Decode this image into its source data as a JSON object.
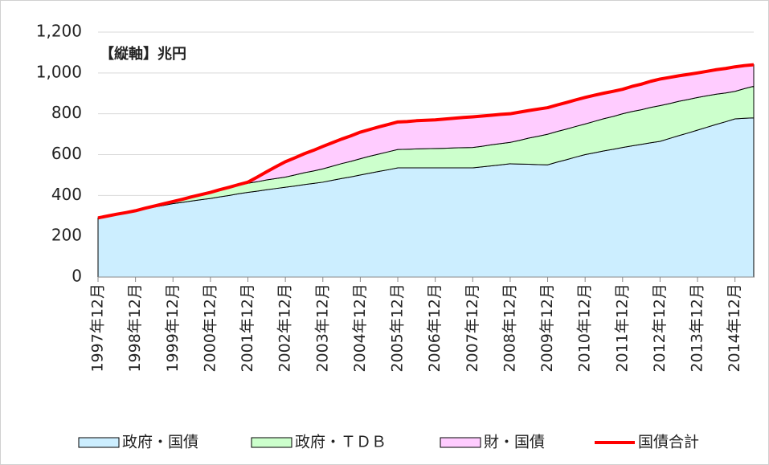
{
  "chart_data": {
    "type": "stacked-area",
    "annotation": "【縦軸】兆円",
    "categories": [
      "1997年12月",
      null,
      null,
      null,
      "1998年12月",
      null,
      null,
      null,
      "1999年12月",
      null,
      null,
      null,
      "2000年12月",
      null,
      null,
      null,
      "2001年12月",
      null,
      null,
      null,
      "2002年12月",
      null,
      null,
      null,
      "2003年12月",
      null,
      null,
      null,
      "2004年12月",
      null,
      null,
      null,
      "2005年12月",
      null,
      null,
      null,
      "2006年12月",
      null,
      null,
      null,
      "2007年12月",
      null,
      null,
      null,
      "2008年12月",
      null,
      null,
      null,
      "2009年12月",
      null,
      null,
      null,
      "2010年12月",
      null,
      null,
      null,
      "2011年12月",
      null,
      null,
      null,
      "2012年12月",
      null,
      null,
      null,
      "2013年12月",
      null,
      null,
      null,
      "2014年12月",
      null,
      null
    ],
    "series": [
      {
        "name": "政府・国債",
        "color": "#cceeff",
        "values": [
          290,
          299,
          308,
          316,
          325,
          334,
          343,
          351,
          360,
          366,
          373,
          379,
          385,
          393,
          400,
          408,
          415,
          421,
          428,
          434,
          440,
          446,
          453,
          459,
          465,
          474,
          483,
          491,
          500,
          509,
          518,
          526,
          535,
          535,
          535,
          535,
          535,
          535,
          535,
          535,
          535,
          540,
          545,
          550,
          555,
          554,
          553,
          551,
          550,
          563,
          575,
          588,
          600,
          609,
          618,
          626,
          635,
          643,
          650,
          658,
          665,
          679,
          693,
          706,
          720,
          734,
          748,
          761,
          775,
          778,
          780
        ]
      },
      {
        "name": "政府・ＴＤＢ",
        "color": "#ccffcc",
        "values": [
          0,
          0,
          0,
          0,
          0,
          3,
          5,
          8,
          10,
          15,
          20,
          25,
          30,
          34,
          38,
          41,
          45,
          46,
          48,
          49,
          50,
          54,
          58,
          61,
          65,
          69,
          73,
          76,
          80,
          83,
          85,
          88,
          90,
          91,
          93,
          94,
          95,
          96,
          98,
          99,
          100,
          101,
          103,
          104,
          105,
          116,
          128,
          139,
          150,
          150,
          150,
          150,
          150,
          154,
          158,
          161,
          165,
          168,
          170,
          173,
          175,
          171,
          168,
          164,
          160,
          154,
          148,
          141,
          135,
          145,
          155
        ]
      },
      {
        "name": "財・国債",
        "color": "#ffccff",
        "values": [
          0,
          0,
          0,
          0,
          0,
          0,
          0,
          0,
          0,
          0,
          0,
          0,
          0,
          1,
          2,
          4,
          5,
          23,
          40,
          58,
          75,
          84,
          93,
          101,
          110,
          115,
          120,
          125,
          130,
          131,
          133,
          134,
          135,
          136,
          138,
          139,
          140,
          143,
          145,
          148,
          150,
          148,
          145,
          143,
          140,
          138,
          135,
          133,
          130,
          130,
          130,
          130,
          130,
          128,
          125,
          123,
          120,
          123,
          125,
          128,
          130,
          128,
          125,
          123,
          120,
          120,
          120,
          120,
          120,
          113,
          105
        ]
      },
      {
        "name": "国債合計",
        "color": "#ff0000",
        "kind": "line",
        "values": [
          290,
          299,
          308,
          316,
          325,
          337,
          348,
          359,
          370,
          381,
          393,
          404,
          415,
          428,
          440,
          453,
          465,
          490,
          516,
          541,
          565,
          584,
          604,
          621,
          640,
          658,
          676,
          692,
          710,
          723,
          736,
          748,
          760,
          762,
          766,
          768,
          770,
          774,
          778,
          782,
          785,
          789,
          793,
          797,
          800,
          808,
          816,
          823,
          830,
          843,
          855,
          868,
          880,
          891,
          901,
          910,
          920,
          934,
          945,
          959,
          970,
          978,
          986,
          993,
          1000,
          1008,
          1016,
          1022,
          1030,
          1036,
          1040
        ]
      }
    ],
    "ylim": [
      0,
      1200
    ],
    "yticks": [
      0,
      200,
      400,
      600,
      800,
      {
        "value": 1000,
        "label": "1,000"
      },
      {
        "value": 1200,
        "label": "1,200"
      }
    ],
    "grid": true
  }
}
